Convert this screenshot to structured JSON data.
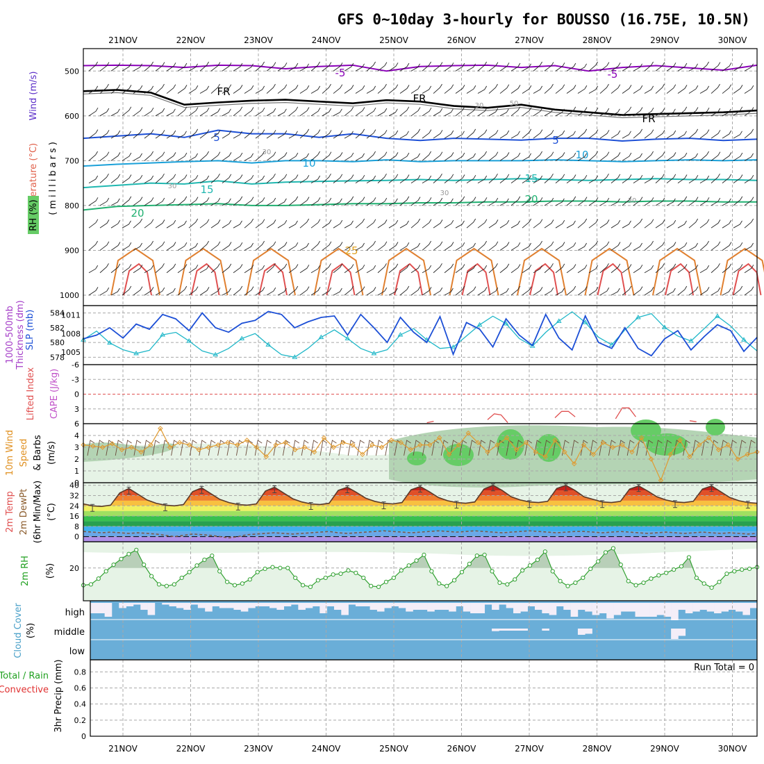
{
  "chart_data": {
    "type": "line",
    "title": "GFS 0~10day 3-hourly for BOUSSO (16.75E, 10.5N)",
    "dates": [
      "21NOV",
      "22NOV",
      "23NOV",
      "24NOV",
      "25NOV",
      "26NOV",
      "27NOV",
      "28NOV",
      "29NOV",
      "30NOV"
    ],
    "colors": {
      "temp_low": "#8a00b8",
      "frz": "#000000",
      "t5": "#1c4fd6",
      "t10": "#1aa0d8",
      "t15": "#1fb7b0",
      "t20": "#1fb070",
      "t25": "#e0a020",
      "hot": "#e06040",
      "rh_light": "#e6f3e6",
      "rh_mid": "#b4d4b4",
      "rh_high": "#66cc66"
    },
    "panels": [
      {
        "id": "upper",
        "ylabels": [
          "Temperature (°C)",
          "Wind (m/s)",
          "(millibars)"
        ],
        "rh_label": "RH (%)",
        "pressure_ticks": [
          "500",
          "600",
          "700",
          "800",
          "900",
          "1000"
        ],
        "pressure_range": [
          450,
          1000
        ],
        "contour_labels": {
          "m5": "-5",
          "fr": "FR",
          "p5": "5",
          "p10": "10",
          "p15": "15",
          "p20": "20",
          "p25": "25",
          "rh30": "30",
          "rh50": "50"
        },
        "temp_contours": [
          {
            "label": "-5",
            "color": "#8a00b8",
            "p": [
              488,
              487,
              488,
              492,
              487,
              488,
              495,
              490,
              487,
              500,
              490,
              488,
              487,
              492,
              488,
              500,
              492,
              488,
              493,
              498,
              487
            ]
          },
          {
            "label": "FR",
            "color": "#000000",
            "p": [
              545,
              542,
              548,
              575,
              570,
              566,
              564,
              568,
              572,
              565,
              568,
              578,
              582,
              575,
              586,
              592,
              598,
              596,
              594,
              592,
              588
            ]
          },
          {
            "label": "5",
            "color": "#1c4fd6",
            "p": [
              650,
              645,
              640,
              648,
              632,
              640,
              640,
              648,
              640,
              650,
              655,
              650,
              652,
              654,
              650,
              650,
              656,
              652,
              650,
              655,
              652
            ]
          },
          {
            "label": "10",
            "color": "#1aa0d8",
            "p": [
              712,
              708,
              705,
              702,
              700,
              705,
              700,
              700,
              702,
              698,
              702,
              700,
              700,
              700,
              698,
              700,
              702,
              700,
              698,
              700,
              698
            ]
          },
          {
            "label": "15",
            "color": "#1fb7b0",
            "p": [
              760,
              755,
              750,
              752,
              745,
              752,
              748,
              746,
              745,
              744,
              742,
              744,
              742,
              740,
              742,
              744,
              742,
              740,
              742,
              742,
              744
            ]
          },
          {
            "label": "20",
            "color": "#1fb070",
            "p": [
              810,
              802,
              800,
              798,
              796,
              800,
              800,
              798,
              796,
              796,
              794,
              794,
              792,
              792,
              790,
              790,
              792,
              790,
              790,
              792,
              792
            ]
          }
        ]
      },
      {
        "id": "thickness_slp",
        "ylabels": [
          "1000-500mb",
          "Thickness (dm)",
          "SLP (mb)"
        ],
        "left_ticks": [
          "584",
          "582",
          "580",
          "578"
        ],
        "thickness_range": [
          577,
          585
        ],
        "right_ticks": [
          "1011",
          "1008",
          "1005"
        ],
        "slp_range": [
          1003,
          1012.5
        ],
        "thickness": [
          580.5,
          581.0,
          582.0,
          580.6,
          582.5,
          581.8,
          583.8,
          583.2,
          581.6,
          584.0,
          582.0,
          581.4,
          582.6,
          583.0,
          584.2,
          583.8,
          582.0,
          582.8,
          583.4,
          583.6,
          581.0,
          583.8,
          582.0,
          580.0,
          583.4,
          581.4,
          580.0,
          583.5,
          578.4,
          582.7,
          581.8,
          579.4,
          583.2,
          581.0,
          579.6,
          583.8,
          580.6,
          579.0,
          583.6,
          580.0,
          579.2,
          582.0,
          579.2,
          578.2,
          580.5,
          581.6,
          579.0,
          580.8,
          582.4,
          581.6,
          578.8,
          580.7
        ],
        "slp": [
          1007.0,
          1008.4,
          1006.5,
          1005.4,
          1004.8,
          1005.3,
          1007.8,
          1008.2,
          1006.8,
          1005.2,
          1004.6,
          1005.6,
          1007.2,
          1008.0,
          1006.2,
          1004.6,
          1004.2,
          1005.6,
          1007.4,
          1008.6,
          1007.2,
          1005.6,
          1004.8,
          1005.4,
          1007.8,
          1008.8,
          1007.0,
          1005.6,
          1005.8,
          1007.6,
          1009.4,
          1010.8,
          1009.6,
          1007.2,
          1006.0,
          1008.2,
          1010.0,
          1011.5,
          1009.8,
          1007.4,
          1006.2,
          1008.6,
          1010.6,
          1011.2,
          1009.0,
          1007.6,
          1006.8,
          1008.8,
          1010.8,
          1009.2,
          1007.0,
          1005.2
        ]
      },
      {
        "id": "cape_li",
        "ylabels": [
          "Lifted Index",
          "CAPE (J/kg)"
        ],
        "left_ticks": [
          "-6",
          "-3",
          "0",
          "3",
          "6"
        ],
        "li_range": [
          -6,
          6
        ],
        "li_segments": [
          {
            "x0": 0.51,
            "x1": 0.52,
            "v": [
              5.8,
              5.5
            ]
          },
          {
            "x0": 0.6,
            "x1": 0.63,
            "v": [
              5.2,
              4.0,
              4.2,
              5.8
            ]
          },
          {
            "x0": 0.7,
            "x1": 0.73,
            "v": [
              4.8,
              3.5,
              3.5,
              4.6
            ]
          },
          {
            "x0": 0.79,
            "x1": 0.82,
            "v": [
              5.0,
              2.8,
              2.8,
              4.6
            ]
          },
          {
            "x0": 0.9,
            "x1": 0.91,
            "v": [
              5.4,
              5.6
            ]
          }
        ]
      },
      {
        "id": "wind10m",
        "ylabels": [
          "10m Wind",
          "Speed",
          "& Barbs",
          "(m/s)"
        ],
        "left_ticks": [
          "4",
          "3",
          "2",
          "1",
          "0"
        ],
        "speed_range": [
          0,
          5
        ],
        "speed": [
          3.2,
          3.1,
          3.0,
          3.3,
          2.8,
          3.0,
          2.6,
          3.2,
          4.6,
          3.0,
          3.4,
          3.2,
          2.8,
          3.0,
          3.2,
          3.4,
          3.2,
          3.6,
          3.0,
          2.2,
          3.2,
          3.4,
          2.8,
          3.0,
          2.6,
          3.8,
          3.0,
          3.4,
          3.2,
          2.4,
          3.2,
          3.0,
          3.6,
          3.4,
          2.8,
          3.2,
          3.2,
          3.8,
          2.4,
          3.2,
          4.2,
          3.4,
          2.6,
          3.2,
          3.8,
          2.8,
          3.4,
          2.6,
          2.2,
          3.6,
          2.6,
          1.6,
          3.2,
          2.4,
          3.4,
          3.0,
          3.2,
          2.6,
          3.8,
          2.0,
          0.2,
          2.4,
          3.6,
          2.2,
          3.2,
          3.8,
          2.8,
          3.2,
          2.0,
          2.4,
          2.6
        ]
      },
      {
        "id": "temp2m",
        "ylabels": [
          "2m Temp",
          "2m DewPt",
          "(6hr Min/Max)",
          "(°C)"
        ],
        "left_ticks": [
          "40",
          "32",
          "24",
          "16",
          "8",
          "0"
        ],
        "temp_range": [
          -4,
          42
        ],
        "temp": [
          25.5,
          24.0,
          23.5,
          24.5,
          34.0,
          37.5,
          33.0,
          28.5,
          26.0,
          24.5,
          24.0,
          25.0,
          35.0,
          38.0,
          33.5,
          29.0,
          26.5,
          25.0,
          24.5,
          25.5,
          35.5,
          38.5,
          34.0,
          29.5,
          27.0,
          25.5,
          25.0,
          26.0,
          36.0,
          38.5,
          34.5,
          30.0,
          27.5,
          26.0,
          25.5,
          26.5,
          36.5,
          39.0,
          35.0,
          30.5,
          28.0,
          26.5,
          26.0,
          27.0,
          37.0,
          40.0,
          36.0,
          31.0,
          28.5,
          27.0,
          26.5,
          27.5,
          37.5,
          40.0,
          36.0,
          31.0,
          29.0,
          27.0,
          26.5,
          27.5,
          37.0,
          39.5,
          35.5,
          31.0,
          28.5,
          27.0,
          26.5,
          27.5,
          37.0,
          39.5,
          35.0,
          30.5,
          28.0,
          26.5,
          26.0
        ],
        "dewpt": [
          4.0,
          3.5,
          3.0,
          3.5,
          3.0,
          2.5,
          3.0,
          2.5,
          2.0,
          1.0,
          0.0,
          1.0,
          2.0,
          1.5,
          1.0,
          0.0,
          -1.0,
          0.0,
          1.5,
          2.0,
          2.5,
          3.0,
          2.5,
          2.0,
          2.5,
          3.0,
          3.5,
          4.0,
          3.0,
          2.5,
          3.0,
          3.5,
          4.0,
          4.5,
          4.0,
          3.5,
          3.0,
          3.5,
          4.0,
          4.5,
          4.0,
          3.5,
          4.0,
          4.5,
          4.0,
          3.5,
          3.0,
          3.5,
          4.0,
          4.5,
          4.0,
          3.5,
          3.0,
          3.5,
          4.0,
          4.0,
          3.5,
          3.0,
          3.5,
          4.0,
          3.5,
          3.0,
          2.5,
          3.0,
          3.5,
          3.0,
          2.5,
          3.0,
          3.5,
          3.0,
          2.5,
          3.0,
          2.5,
          2.0,
          2.5
        ]
      },
      {
        "id": "rh2m",
        "ylabels": [
          "2m RH",
          "(%)"
        ],
        "left_ticks": [
          "20"
        ],
        "rh_range": [
          0,
          36
        ],
        "rh": [
          9.5,
          10.0,
          13.5,
          18.0,
          22.0,
          25.5,
          28.5,
          31.0,
          22.0,
          15.0,
          10.0,
          9.0,
          10.0,
          14.0,
          17.5,
          21.5,
          25.0,
          27.5,
          18.0,
          11.5,
          9.5,
          10.5,
          13.0,
          17.5,
          19.5,
          20.5,
          20.0,
          20.0,
          14.0,
          9.5,
          8.5,
          12.5,
          14.0,
          16.0,
          16.5,
          18.5,
          17.0,
          14.0,
          9.0,
          8.5,
          11.5,
          14.0,
          18.5,
          21.5,
          24.5,
          28.0,
          18.0,
          10.5,
          9.0,
          12.5,
          17.5,
          22.5,
          27.5,
          28.0,
          18.0,
          11.0,
          10.0,
          13.0,
          18.5,
          21.5,
          25.0,
          30.0,
          18.0,
          12.0,
          9.0,
          11.0,
          14.0,
          19.5,
          24.0,
          29.5,
          32.0,
          22.0,
          12.0,
          9.5,
          11.0,
          13.5,
          15.5,
          17.0,
          19.0,
          21.0,
          26.5,
          14.0,
          10.5,
          8.0,
          11.5,
          16.5,
          18.0,
          19.0,
          19.5,
          20.5
        ]
      },
      {
        "id": "cloud",
        "ylabels": [
          "Cloud Cover",
          "(%)"
        ],
        "categories": [
          "high",
          "middle",
          "low"
        ],
        "high_fill": [
          0.4,
          0.4,
          0.2,
          1.0,
          0.7,
          0.8,
          0.9,
          0.6,
          0.3,
          1.0,
          0.9,
          0.8,
          0.7,
          0.6,
          0.9,
          0.7,
          0.5,
          0.8,
          0.7,
          0.7,
          0.6,
          0.5,
          0.7,
          0.8,
          0.8,
          0.7,
          0.6,
          0.8,
          0.9,
          0.6,
          0.7,
          0.8,
          0.4,
          0.8,
          0.6,
          0.3,
          0.9,
          0.8,
          0.8,
          0.6,
          0.5,
          0.7,
          0.8,
          0.7,
          0.5,
          0.6,
          0.6,
          0.5,
          0.6,
          0.6,
          0.5,
          0.8,
          0.5,
          0.4,
          0.4,
          0.9,
          0.6,
          0.9,
          0.7,
          0.4,
          0.5,
          0.8,
          0.6,
          0.4,
          0.3,
          0.8,
          0.6,
          0.2,
          0.6,
          0.5,
          0.3,
          0.4,
          0.1,
          0.3,
          0.5,
          0.5,
          0.2,
          0.2,
          0.2,
          0.3,
          0.2,
          0.0,
          0.6,
          0.4,
          0.5,
          0.6,
          0.5,
          0.4,
          0.5,
          0.6,
          0.5,
          0.3,
          0.7
        ],
        "mid_gaps": [
          {
            "i": 56,
            "f": 0.25
          },
          {
            "i": 57,
            "f": 0.2
          },
          {
            "i": 58,
            "f": 0.2
          },
          {
            "i": 59,
            "f": 0.2
          },
          {
            "i": 60,
            "f": 0.2
          },
          {
            "i": 63,
            "f": 0.2
          },
          {
            "i": 68,
            "f": 0.6
          },
          {
            "i": 69,
            "f": 0.5
          },
          {
            "i": 81,
            "f": 1.0
          },
          {
            "i": 82,
            "f": 0.7
          }
        ]
      },
      {
        "id": "precip",
        "ylabels": [
          "Total / Rain",
          "Convective",
          "3hr Precip (mm)"
        ],
        "left_ticks": [
          "0.8",
          "0.6",
          "0.4",
          "0.2",
          "0"
        ],
        "precip_range": [
          0,
          0.95
        ],
        "run_total": "Run Total = 0",
        "values": []
      }
    ]
  }
}
